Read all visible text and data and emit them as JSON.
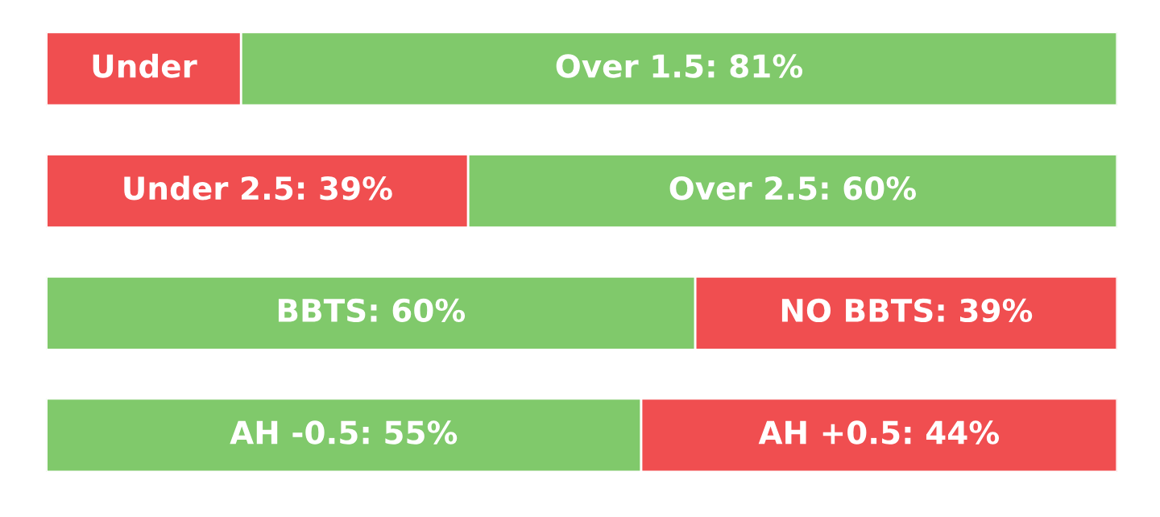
{
  "chart_data": {
    "type": "bar",
    "orientation": "horizontal",
    "stacked": true,
    "categories": [
      null,
      null,
      null,
      null
    ],
    "xlim": [
      0,
      99
    ],
    "tick_labels": false,
    "grid": false,
    "legend": false,
    "series": [
      {
        "colors": [
          "#f04e50",
          "#f04e50",
          "#80c96b",
          "#80c96b"
        ],
        "values": [
          18,
          39,
          60,
          55
        ],
        "value_labels": [
          "Under",
          "Under 2.5: 39%",
          "BBTS: 60%",
          "AH -0.5: 55%"
        ]
      },
      {
        "colors": [
          "#80c96b",
          "#80c96b",
          "#f04e50",
          "#f04e50"
        ],
        "values": [
          81,
          60,
          39,
          44
        ],
        "value_labels": [
          "Over 1.5: 81%",
          "Over 2.5: 60%",
          "NO BBTS: 39%",
          "AH +0.5: 44%"
        ]
      }
    ]
  }
}
